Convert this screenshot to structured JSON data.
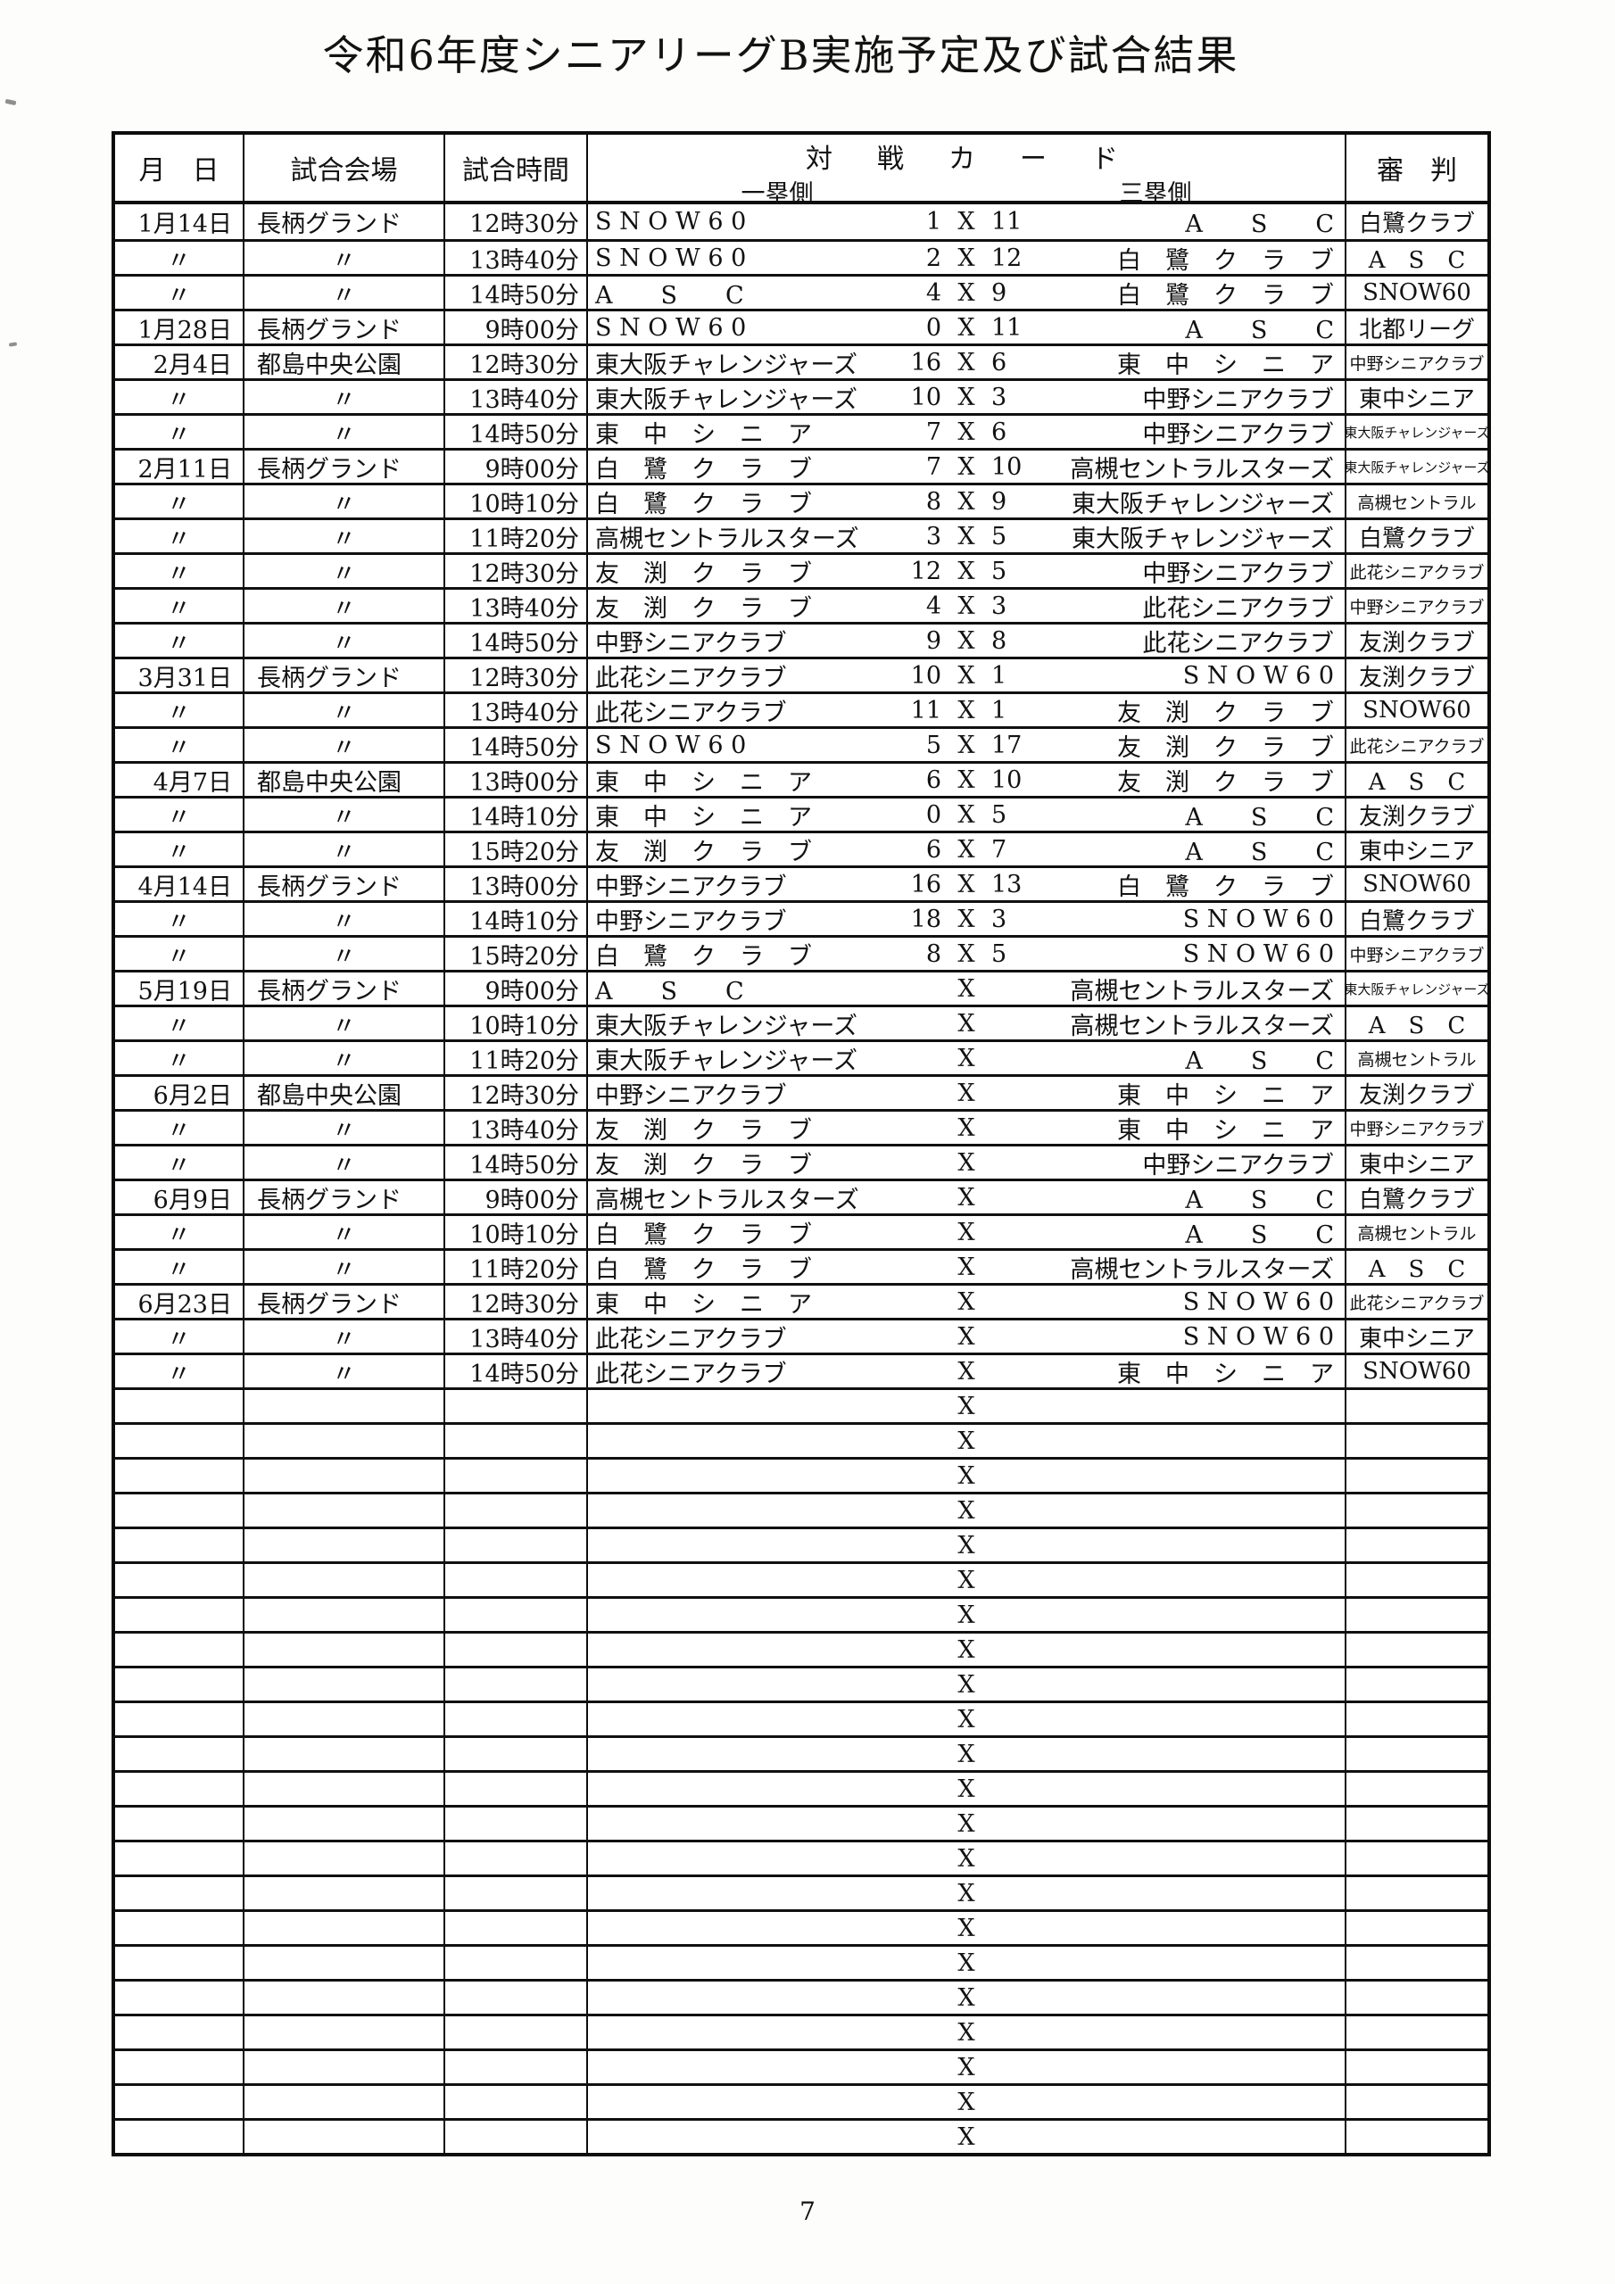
{
  "page": {
    "title": "令和6年度シニアリーグB実施予定及び試合結果",
    "page_number": "7"
  },
  "table": {
    "headers": {
      "date": "月　日",
      "venue": "試合会場",
      "time": "試合時間",
      "matchup": "対　戦　カ　ー　ド",
      "first_base": "一塁側",
      "third_base": "三塁側",
      "umpire": "審　判"
    },
    "rows": [
      {
        "date": "1月14日",
        "venue": "長柄グランド",
        "time": "12時30分",
        "team1": "S N O W 6 0",
        "score1": "1",
        "x": "X",
        "score2": "11",
        "team2": "A　　S　　C",
        "umpire": "白鷺クラブ"
      },
      {
        "date": "〃",
        "venue": "〃",
        "time": "13時40分",
        "team1": "S N O W 6 0",
        "score1": "2",
        "x": "X",
        "score2": "12",
        "team2": "白　鷺　ク　ラ　ブ",
        "umpire": "A　S　C"
      },
      {
        "date": "〃",
        "venue": "〃",
        "time": "14時50分",
        "team1": "A　　S　　C",
        "score1": "4",
        "x": "X",
        "score2": "9",
        "team2": "白　鷺　ク　ラ　ブ",
        "umpire": "SNOW60"
      },
      {
        "date": "1月28日",
        "venue": "長柄グランド",
        "time": "9時00分",
        "team1": "S N O W 6 0",
        "score1": "0",
        "x": "X",
        "score2": "11",
        "team2": "A　　S　　C",
        "umpire": "北都リーグ"
      },
      {
        "date": "2月4日",
        "venue": "都島中央公園",
        "time": "12時30分",
        "team1": "東大阪チャレンジャーズ",
        "score1": "16",
        "x": "X",
        "score2": "6",
        "team2": "東　中　シ　ニ　ア",
        "umpire": "中野シニアクラブ"
      },
      {
        "date": "〃",
        "venue": "〃",
        "time": "13時40分",
        "team1": "東大阪チャレンジャーズ",
        "score1": "10",
        "x": "X",
        "score2": "3",
        "team2": "中野シニアクラブ",
        "umpire": "東中シニア"
      },
      {
        "date": "〃",
        "venue": "〃",
        "time": "14時50分",
        "team1": "東　中　シ　ニ　ア",
        "score1": "7",
        "x": "X",
        "score2": "6",
        "team2": "中野シニアクラブ",
        "umpire": "東大阪チャレンジャーズ"
      },
      {
        "date": "2月11日",
        "venue": "長柄グランド",
        "time": "9時00分",
        "team1": "白　鷺　ク　ラ　ブ",
        "score1": "7",
        "x": "X",
        "score2": "10",
        "team2": "高槻セントラルスターズ",
        "umpire": "東大阪チャレンジャーズ"
      },
      {
        "date": "〃",
        "venue": "〃",
        "time": "10時10分",
        "team1": "白　鷺　ク　ラ　ブ",
        "score1": "8",
        "x": "X",
        "score2": "9",
        "team2": "東大阪チャレンジャーズ",
        "umpire": "高槻セントラル"
      },
      {
        "date": "〃",
        "venue": "〃",
        "time": "11時20分",
        "team1": "高槻セントラルスターズ",
        "score1": "3",
        "x": "X",
        "score2": "5",
        "team2": "東大阪チャレンジャーズ",
        "umpire": "白鷺クラブ"
      },
      {
        "date": "〃",
        "venue": "〃",
        "time": "12時30分",
        "team1": "友　渕　ク　ラ　ブ",
        "score1": "12",
        "x": "X",
        "score2": "5",
        "team2": "中野シニアクラブ",
        "umpire": "此花シニアクラブ"
      },
      {
        "date": "〃",
        "venue": "〃",
        "time": "13時40分",
        "team1": "友　渕　ク　ラ　ブ",
        "score1": "4",
        "x": "X",
        "score2": "3",
        "team2": "此花シニアクラブ",
        "umpire": "中野シニアクラブ"
      },
      {
        "date": "〃",
        "venue": "〃",
        "time": "14時50分",
        "team1": "中野シニアクラブ",
        "score1": "9",
        "x": "X",
        "score2": "8",
        "team2": "此花シニアクラブ",
        "umpire": "友渕クラブ"
      },
      {
        "date": "3月31日",
        "venue": "長柄グランド",
        "time": "12時30分",
        "team1": "此花シニアクラブ",
        "score1": "10",
        "x": "X",
        "score2": "1",
        "team2": "S N O W 6 0",
        "umpire": "友渕クラブ"
      },
      {
        "date": "〃",
        "venue": "〃",
        "time": "13時40分",
        "team1": "此花シニアクラブ",
        "score1": "11",
        "x": "X",
        "score2": "1",
        "team2": "友　渕　ク　ラ　ブ",
        "umpire": "SNOW60"
      },
      {
        "date": "〃",
        "venue": "〃",
        "time": "14時50分",
        "team1": "S N O W 6 0",
        "score1": "5",
        "x": "X",
        "score2": "17",
        "team2": "友　渕　ク　ラ　ブ",
        "umpire": "此花シニアクラブ"
      },
      {
        "date": "4月7日",
        "venue": "都島中央公園",
        "time": "13時00分",
        "team1": "東　中　シ　ニ　ア",
        "score1": "6",
        "x": "X",
        "score2": "10",
        "team2": "友　渕　ク　ラ　ブ",
        "umpire": "A　S　C"
      },
      {
        "date": "〃",
        "venue": "〃",
        "time": "14時10分",
        "team1": "東　中　シ　ニ　ア",
        "score1": "0",
        "x": "X",
        "score2": "5",
        "team2": "A　　S　　C",
        "umpire": "友渕クラブ"
      },
      {
        "date": "〃",
        "venue": "〃",
        "time": "15時20分",
        "team1": "友　渕　ク　ラ　ブ",
        "score1": "6",
        "x": "X",
        "score2": "7",
        "team2": "A　　S　　C",
        "umpire": "東中シニア"
      },
      {
        "date": "4月14日",
        "venue": "長柄グランド",
        "time": "13時00分",
        "team1": "中野シニアクラブ",
        "score1": "16",
        "x": "X",
        "score2": "13",
        "team2": "白　鷺　ク　ラ　ブ",
        "umpire": "SNOW60"
      },
      {
        "date": "〃",
        "venue": "〃",
        "time": "14時10分",
        "team1": "中野シニアクラブ",
        "score1": "18",
        "x": "X",
        "score2": "3",
        "team2": "S N O W 6 0",
        "umpire": "白鷺クラブ"
      },
      {
        "date": "〃",
        "venue": "〃",
        "time": "15時20分",
        "team1": "白　鷺　ク　ラ　ブ",
        "score1": "8",
        "x": "X",
        "score2": "5",
        "team2": "S N O W 6 0",
        "umpire": "中野シニアクラブ"
      },
      {
        "date": "5月19日",
        "venue": "長柄グランド",
        "time": "9時00分",
        "team1": "A　　S　　C",
        "score1": "",
        "x": "X",
        "score2": "",
        "team2": "高槻セントラルスターズ",
        "umpire": "東大阪チャレンジャーズ"
      },
      {
        "date": "〃",
        "venue": "〃",
        "time": "10時10分",
        "team1": "東大阪チャレンジャーズ",
        "score1": "",
        "x": "X",
        "score2": "",
        "team2": "高槻セントラルスターズ",
        "umpire": "A　S　C"
      },
      {
        "date": "〃",
        "venue": "〃",
        "time": "11時20分",
        "team1": "東大阪チャレンジャーズ",
        "score1": "",
        "x": "X",
        "score2": "",
        "team2": "A　　S　　C",
        "umpire": "高槻セントラル"
      },
      {
        "date": "6月2日",
        "venue": "都島中央公園",
        "time": "12時30分",
        "team1": "中野シニアクラブ",
        "score1": "",
        "x": "X",
        "score2": "",
        "team2": "東　中　シ　ニ　ア",
        "umpire": "友渕クラブ"
      },
      {
        "date": "〃",
        "venue": "〃",
        "time": "13時40分",
        "team1": "友　渕　ク　ラ　ブ",
        "score1": "",
        "x": "X",
        "score2": "",
        "team2": "東　中　シ　ニ　ア",
        "umpire": "中野シニアクラブ"
      },
      {
        "date": "〃",
        "venue": "〃",
        "time": "14時50分",
        "team1": "友　渕　ク　ラ　ブ",
        "score1": "",
        "x": "X",
        "score2": "",
        "team2": "中野シニアクラブ",
        "umpire": "東中シニア"
      },
      {
        "date": "6月9日",
        "venue": "長柄グランド",
        "time": "9時00分",
        "team1": "高槻セントラルスターズ",
        "score1": "",
        "x": "X",
        "score2": "",
        "team2": "A　　S　　C",
        "umpire": "白鷺クラブ"
      },
      {
        "date": "〃",
        "venue": "〃",
        "time": "10時10分",
        "team1": "白　鷺　ク　ラ　ブ",
        "score1": "",
        "x": "X",
        "score2": "",
        "team2": "A　　S　　C",
        "umpire": "高槻セントラル"
      },
      {
        "date": "〃",
        "venue": "〃",
        "time": "11時20分",
        "team1": "白　鷺　ク　ラ　ブ",
        "score1": "",
        "x": "X",
        "score2": "",
        "team2": "高槻セントラルスターズ",
        "umpire": "A　S　C"
      },
      {
        "date": "6月23日",
        "venue": "長柄グランド",
        "time": "12時30分",
        "team1": "東　中　シ　ニ　ア",
        "score1": "",
        "x": "X",
        "score2": "",
        "team2": "S N O W 6 0",
        "umpire": "此花シニアクラブ"
      },
      {
        "date": "〃",
        "venue": "〃",
        "time": "13時40分",
        "team1": "此花シニアクラブ",
        "score1": "",
        "x": "X",
        "score2": "",
        "team2": "S N O W 6 0",
        "umpire": "東中シニア"
      },
      {
        "date": "〃",
        "venue": "〃",
        "time": "14時50分",
        "team1": "此花シニアクラブ",
        "score1": "",
        "x": "X",
        "score2": "",
        "team2": "東　中　シ　ニ　ア",
        "umpire": "SNOW60"
      }
    ],
    "empty_row_count": 22,
    "empty_row_x": "X"
  }
}
